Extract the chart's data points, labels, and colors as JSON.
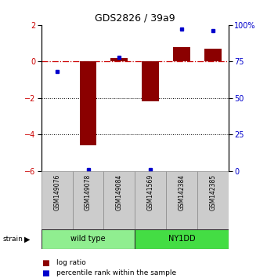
{
  "title": "GDS2826 / 39a9",
  "samples": [
    "GSM149076",
    "GSM149078",
    "GSM149084",
    "GSM141569",
    "GSM142384",
    "GSM142385"
  ],
  "log_ratios": [
    0.0,
    -4.6,
    0.2,
    -2.2,
    0.8,
    0.7
  ],
  "percentile_ranks": [
    68,
    1,
    78,
    1,
    97,
    96
  ],
  "ylim_left": [
    -6,
    2
  ],
  "ylim_right": [
    0,
    100
  ],
  "yticks_left": [
    -6,
    -4,
    -2,
    0,
    2
  ],
  "yticks_right": [
    0,
    25,
    50,
    75,
    100
  ],
  "ytick_right_labels": [
    "0",
    "25",
    "50",
    "75",
    "100%"
  ],
  "bar_color": "#8B0000",
  "dot_color": "#0000CC",
  "zero_line_color": "#CC0000",
  "grid_color": "#000000",
  "label_color_left": "#CC0000",
  "label_color_right": "#0000CC",
  "group_boundaries": [
    {
      "start": 0,
      "end": 2,
      "name": "wild type",
      "color": "#90EE90"
    },
    {
      "start": 3,
      "end": 5,
      "name": "NY1DD",
      "color": "#44DD44"
    }
  ],
  "legend_items": [
    {
      "label": "log ratio",
      "color": "#8B0000"
    },
    {
      "label": "percentile rank within the sample",
      "color": "#0000CC"
    }
  ]
}
